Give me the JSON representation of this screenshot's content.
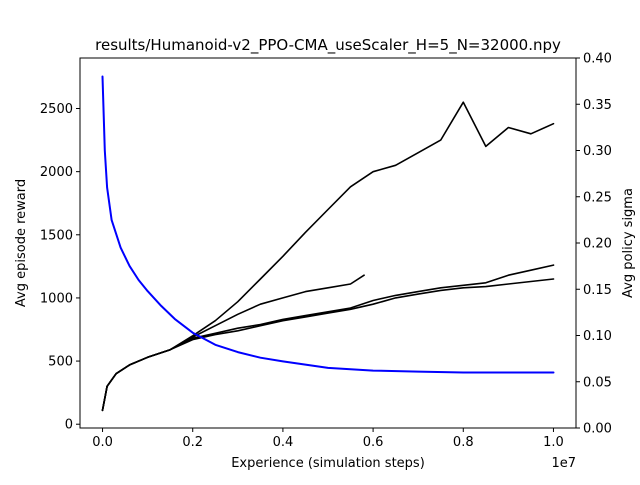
{
  "chart_data": {
    "type": "line",
    "title": "results/Humanoid-v2_PPO-CMA_useScaler_H=5_N=32000.npy",
    "xlabel": "Experience (simulation steps)",
    "x_exponent_label": "1e7",
    "ylabel_left": "Avg episode reward",
    "ylabel_right": "Avg policy sigma",
    "xlim": [
      -0.05,
      1.05
    ],
    "ylim_left": [
      -30,
      2900
    ],
    "ylim_right": [
      0.0,
      0.4
    ],
    "x_ticks": [
      0.0,
      0.2,
      0.4,
      0.6,
      0.8,
      1.0
    ],
    "x_tick_labels": [
      "0.0",
      "0.2",
      "0.4",
      "0.6",
      "0.8",
      "1.0"
    ],
    "y_left_ticks": [
      0,
      500,
      1000,
      1500,
      2000,
      2500
    ],
    "y_left_tick_labels": [
      "0",
      "500",
      "1000",
      "1500",
      "2000",
      "2500"
    ],
    "y_right_ticks": [
      0.0,
      0.05,
      0.1,
      0.15,
      0.2,
      0.25,
      0.3,
      0.35,
      0.4
    ],
    "y_right_tick_labels": [
      "0.00",
      "0.05",
      "0.10",
      "0.15",
      "0.20",
      "0.25",
      "0.30",
      "0.35",
      "0.40"
    ],
    "grid": false,
    "colors": {
      "reward": "#000000",
      "sigma": "#0000ff",
      "right_axis_label": "#0000ff"
    },
    "series": [
      {
        "axis": "left",
        "color": "#000000",
        "x": [
          0.0,
          0.01,
          0.03,
          0.06,
          0.1,
          0.15,
          0.2,
          0.25,
          0.3,
          0.35,
          0.4,
          0.45,
          0.5,
          0.55,
          0.6,
          0.65,
          0.7,
          0.75,
          0.8,
          0.85,
          0.9,
          0.95,
          1.0
        ],
        "y": [
          110,
          300,
          400,
          470,
          530,
          590,
          700,
          820,
          970,
          1150,
          1330,
          1520,
          1700,
          1880,
          2000,
          2050,
          2150,
          2250,
          2550,
          2200,
          2350,
          2300,
          2380
        ]
      },
      {
        "axis": "left",
        "color": "#000000",
        "x": [
          0.0,
          0.01,
          0.03,
          0.06,
          0.1,
          0.15,
          0.2,
          0.25,
          0.3,
          0.35,
          0.4,
          0.45,
          0.5,
          0.55,
          0.58
        ],
        "y": [
          110,
          300,
          400,
          470,
          530,
          590,
          690,
          780,
          870,
          950,
          1000,
          1050,
          1080,
          1110,
          1180
        ]
      },
      {
        "axis": "left",
        "color": "#000000",
        "x": [
          0.0,
          0.01,
          0.03,
          0.06,
          0.1,
          0.15,
          0.2,
          0.25,
          0.3,
          0.35,
          0.4,
          0.45,
          0.5,
          0.55,
          0.6,
          0.65,
          0.7,
          0.75,
          0.8,
          0.85,
          0.9,
          0.95,
          1.0
        ],
        "y": [
          110,
          300,
          400,
          470,
          530,
          590,
          680,
          720,
          760,
          790,
          830,
          860,
          890,
          920,
          980,
          1020,
          1050,
          1080,
          1100,
          1120,
          1180,
          1220,
          1260
        ]
      },
      {
        "axis": "left",
        "color": "#000000",
        "x": [
          0.0,
          0.01,
          0.03,
          0.06,
          0.1,
          0.15,
          0.2,
          0.25,
          0.3,
          0.35,
          0.4,
          0.45,
          0.5,
          0.55,
          0.6,
          0.65,
          0.7,
          0.75,
          0.8,
          0.85,
          0.9,
          0.95,
          1.0
        ],
        "y": [
          110,
          300,
          400,
          470,
          530,
          590,
          670,
          710,
          740,
          780,
          820,
          850,
          880,
          910,
          950,
          1000,
          1030,
          1060,
          1080,
          1090,
          1110,
          1130,
          1150
        ]
      },
      {
        "axis": "right",
        "color": "#0000ff",
        "x": [
          0.0,
          0.005,
          0.01,
          0.02,
          0.04,
          0.06,
          0.08,
          0.1,
          0.13,
          0.16,
          0.2,
          0.25,
          0.3,
          0.35,
          0.4,
          0.5,
          0.6,
          0.7,
          0.8,
          0.9,
          1.0
        ],
        "y": [
          0.38,
          0.3,
          0.26,
          0.225,
          0.195,
          0.175,
          0.16,
          0.148,
          0.132,
          0.118,
          0.103,
          0.09,
          0.082,
          0.076,
          0.072,
          0.065,
          0.062,
          0.061,
          0.06,
          0.06,
          0.06
        ]
      }
    ]
  }
}
